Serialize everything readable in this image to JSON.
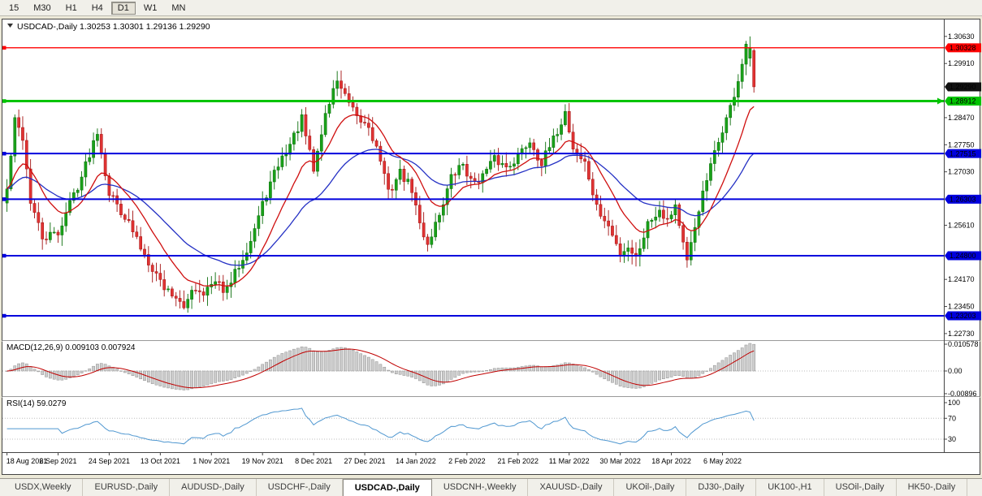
{
  "toolbar": {
    "timeframes": [
      "15",
      "M30",
      "H1",
      "H4",
      "D1",
      "W1",
      "MN"
    ],
    "selected": "D1"
  },
  "title": {
    "symbol": "USDCAD-,Daily",
    "ohlc": [
      "1.30253",
      "1.30301",
      "1.29136",
      "1.29290"
    ]
  },
  "price_scale": {
    "min": 1.2262,
    "max": 1.3108,
    "labels": [
      "1.30630",
      "1.29910",
      "1.28470",
      "1.27750",
      "1.27030",
      "1.25610",
      "1.24170",
      "1.23450",
      "1.22730"
    ]
  },
  "hlines": [
    {
      "price": 1.30328,
      "label": "1.30328",
      "color": "#FF0000",
      "width": 1.4,
      "role": "resistance"
    },
    {
      "price": 1.28912,
      "label": "1.28912",
      "color": "#00C400",
      "width": 3,
      "role": "support"
    },
    {
      "price": 1.27515,
      "label": "1.27515",
      "color": "#0000DD",
      "width": 2,
      "role": "support"
    },
    {
      "price": 1.26303,
      "label": "1.26303",
      "color": "#0000DD",
      "width": 2,
      "role": "support"
    },
    {
      "price": 1.248,
      "label": "1.24800",
      "color": "#0000DD",
      "width": 2,
      "role": "support"
    },
    {
      "price": 1.23203,
      "label": "1.23203",
      "color": "#0000DD",
      "width": 2,
      "role": "support"
    }
  ],
  "current_price": {
    "value": 1.2929,
    "label": "1.29290",
    "tag_color": "#111111"
  },
  "macd": {
    "label": "MACD(12,26,9) 0.009103 0.007924",
    "main_value": 0.009103,
    "signal_value": 0.007924,
    "axis": [
      {
        "value": 0.010578,
        "label": "0.010578"
      },
      {
        "value": 0,
        "label": "0.00"
      },
      {
        "value": -0.00896,
        "label": "-0.00896"
      }
    ]
  },
  "rsi": {
    "label": "RSI(14) 59.0279",
    "value": 59.0279,
    "levels": [
      70,
      30
    ],
    "axis": [
      {
        "value": 100,
        "label": "100"
      },
      {
        "value": 70,
        "label": "70"
      },
      {
        "value": 30,
        "label": "30"
      }
    ]
  },
  "dates": [
    "18 Aug 2021",
    "6 Sep 2021",
    "24 Sep 2021",
    "13 Oct 2021",
    "1 Nov 2021",
    "19 Nov 2021",
    "8 Dec 2021",
    "27 Dec 2021",
    "14 Jan 2022",
    "2 Feb 2022",
    "21 Feb 2022",
    "11 Mar 2022",
    "30 Mar 2022",
    "18 Apr 2022",
    "6 May 2022"
  ],
  "tabs": {
    "items": [
      "USDX,Weekly",
      "EURUSD-,Daily",
      "AUDUSD-,Daily",
      "USDCHF-,Daily",
      "USDCAD-,Daily",
      "USDCNH-,Weekly",
      "XAUUSD-,Daily",
      "UKOil-,Daily",
      "DJ30-,Daily",
      "UK100-,H1",
      "USOil-,Daily",
      "HK50-,Daily"
    ],
    "active_index": 4
  },
  "chart_data": {
    "type": "candlestick",
    "symbol": "USDCAD",
    "timeframe": "Daily",
    "bars_total": 191,
    "seed": 42,
    "first_open": 1.262,
    "date_label_step_bars": 13,
    "last_candle": {
      "open": 1.30253,
      "high": 1.30301,
      "low": 1.29136,
      "close": 1.2929
    },
    "recent_candles": [
      {
        "open": 1.3005,
        "high": 1.3063,
        "low": 1.2983,
        "close": 1.3032
      },
      {
        "open": 1.30253,
        "high": 1.30301,
        "low": 1.29136,
        "close": 1.2929
      }
    ],
    "close_waypoints": [
      [
        0,
        1.2655
      ],
      [
        2,
        1.2838
      ],
      [
        4,
        1.2795
      ],
      [
        6,
        1.2625
      ],
      [
        9,
        1.2525
      ],
      [
        13,
        1.254
      ],
      [
        16,
        1.2622
      ],
      [
        19,
        1.269
      ],
      [
        23,
        1.2815
      ],
      [
        26,
        1.2648
      ],
      [
        30,
        1.2585
      ],
      [
        34,
        1.2502
      ],
      [
        38,
        1.2432
      ],
      [
        40,
        1.2396
      ],
      [
        43,
        1.2372
      ],
      [
        45,
        1.2332
      ],
      [
        47,
        1.2396
      ],
      [
        50,
        1.2386
      ],
      [
        53,
        1.2406
      ],
      [
        56,
        1.2386
      ],
      [
        59,
        1.2456
      ],
      [
        62,
        1.2522
      ],
      [
        66,
        1.2645
      ],
      [
        69,
        1.2722
      ],
      [
        72,
        1.2776
      ],
      [
        75,
        1.2842
      ],
      [
        78,
        1.2706
      ],
      [
        81,
        1.2856
      ],
      [
        84,
        1.295
      ],
      [
        86,
        1.2902
      ],
      [
        89,
        1.2842
      ],
      [
        92,
        1.2826
      ],
      [
        95,
        1.2736
      ],
      [
        97,
        1.2646
      ],
      [
        100,
        1.2702
      ],
      [
        103,
        1.2656
      ],
      [
        105,
        1.2562
      ],
      [
        107,
        1.2512
      ],
      [
        110,
        1.2592
      ],
      [
        113,
        1.2686
      ],
      [
        116,
        1.2726
      ],
      [
        118,
        1.2676
      ],
      [
        121,
        1.2692
      ],
      [
        124,
        1.2736
      ],
      [
        127,
        1.2716
      ],
      [
        130,
        1.2746
      ],
      [
        133,
        1.2786
      ],
      [
        136,
        1.2726
      ],
      [
        139,
        1.2786
      ],
      [
        142,
        1.2862
      ],
      [
        144,
        1.2766
      ],
      [
        147,
        1.2726
      ],
      [
        150,
        1.2606
      ],
      [
        153,
        1.2556
      ],
      [
        156,
        1.2486
      ],
      [
        158,
        1.2506
      ],
      [
        160,
        1.2476
      ],
      [
        163,
        1.2566
      ],
      [
        166,
        1.2606
      ],
      [
        168,
        1.2576
      ],
      [
        170,
        1.2616
      ],
      [
        173,
        1.2458
      ],
      [
        176,
        1.2606
      ],
      [
        179,
        1.2716
      ],
      [
        182,
        1.2816
      ],
      [
        184,
        1.2872
      ],
      [
        186,
        1.2946
      ],
      [
        188,
        1.303
      ],
      [
        189,
        1.3032
      ],
      [
        190,
        1.2929
      ]
    ],
    "ma_fast_period": 13,
    "ma_fast_color": "#CF0E0E",
    "ma_slow_period": 34,
    "ma_slow_color": "#2430C4",
    "up_color": "#19A119",
    "down_color": "#E03333",
    "macd_histogram_color": "#CDCDCD",
    "macd_signal_color": "#C00000",
    "rsi_color": "#4F97D0"
  }
}
